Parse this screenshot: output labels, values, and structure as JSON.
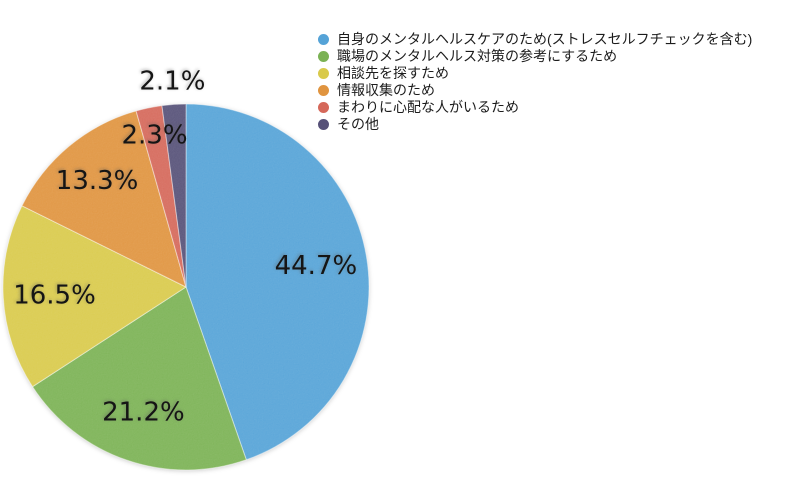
{
  "figure": {
    "background": "#ffffff"
  },
  "chart_data": {
    "type": "pie",
    "title": "",
    "categories": [
      "自身のメンタルヘルスケアのため(ストレスセルフチェックを含む)",
      "職場のメンタルヘルス対策の参考にするため",
      "相談先を探すため",
      "情報収集のため",
      "まわりに心配な人がいるため",
      "その他"
    ],
    "values": [
      44.7,
      21.2,
      16.5,
      13.3,
      2.3,
      2.1
    ],
    "slice_labels": [
      "44.7%",
      "21.2%",
      "16.5%",
      "13.3%",
      "2.3%",
      "2.1%"
    ],
    "colors": [
      "#55a3d7",
      "#7bb254",
      "#d9ca4b",
      "#e0943f",
      "#d5685a",
      "#565178"
    ],
    "label_color": "#151515",
    "legend_position": "top-right",
    "start_angle": "12-oclock",
    "direction": "clockwise"
  }
}
